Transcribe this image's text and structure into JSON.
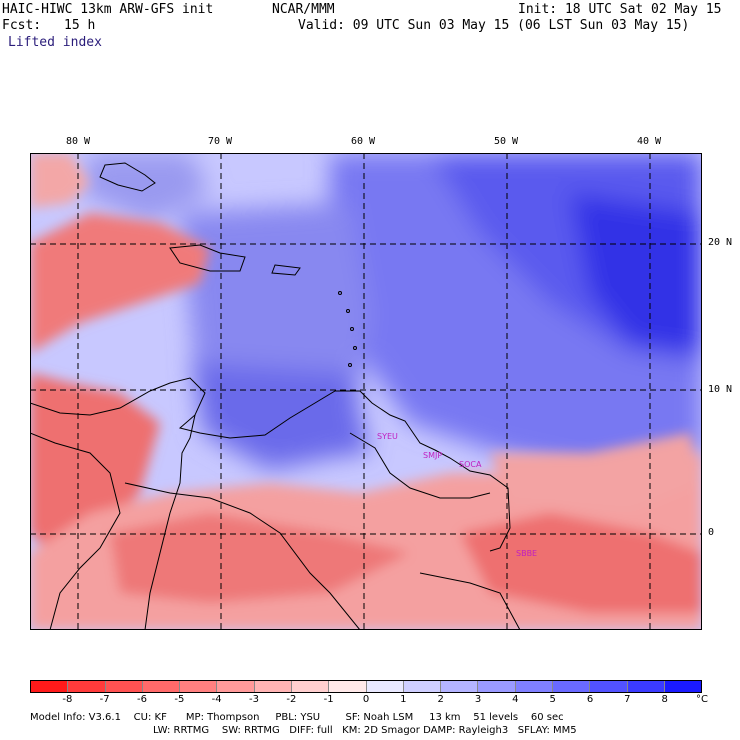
{
  "header": {
    "model": "HAIC-HIWC 13km ARW-GFS init",
    "org": "NCAR/MMM",
    "init": "Init: 18 UTC Sat 02 May 15",
    "fcst_label": "Fcst:",
    "fcst_value": "15 h",
    "valid": "Valid: 09 UTC Sun 03 May 15 (06 LST Sun 03 May 15)",
    "field": "Lifted index"
  },
  "map": {
    "lon_labels": [
      "80 W",
      "70 W",
      "60 W",
      "50 W",
      "40 W"
    ],
    "lat_labels": [
      "20 N",
      "10 N",
      "0"
    ],
    "stations": [
      "SYEU",
      "SMJP",
      "SOCA",
      "SBBE"
    ]
  },
  "colorbar": {
    "unit": "°C",
    "ticks": [
      "-8",
      "-7",
      "-6",
      "-5",
      "-4",
      "-3",
      "-2",
      "-1",
      "0",
      "1",
      "2",
      "3",
      "4",
      "5",
      "6",
      "7",
      "8"
    ],
    "colors": [
      "#ff1a1a",
      "#ff3b3b",
      "#ff5252",
      "#ff6a6a",
      "#ff8080",
      "#ff9a9a",
      "#ffb4b4",
      "#ffcfcf",
      "#ffe9e9",
      "#e9e9ff",
      "#cfcfff",
      "#b4b4ff",
      "#9a9aff",
      "#8080ff",
      "#6a6aff",
      "#5252ff",
      "#3b3bff",
      "#1a1aff"
    ]
  },
  "footer": {
    "line1": "Model Info: V3.6.1    CU: KF      MP: Thompson     PBL: YSU        SF: Noah LSM     13 km    51 levels    60 sec",
    "line2": "LW: RRTMG    SW: RRTMG   DIFF: full   KM: 2D Smagor DAMP: Rayleigh3   SFLAY: MM5"
  }
}
